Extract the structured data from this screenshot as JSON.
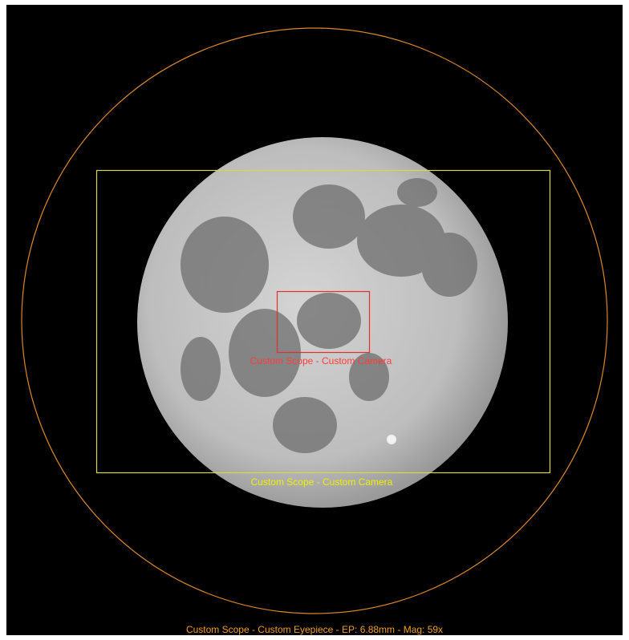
{
  "eyepiece": {
    "label": "Custom Scope - Custom Eyepiece - EP: 6.88mm - Mag: 59x"
  },
  "cameras": [
    {
      "label": "Custom Scope - Custom Camera"
    },
    {
      "label": "Custom Scope - Custom Camera"
    }
  ]
}
